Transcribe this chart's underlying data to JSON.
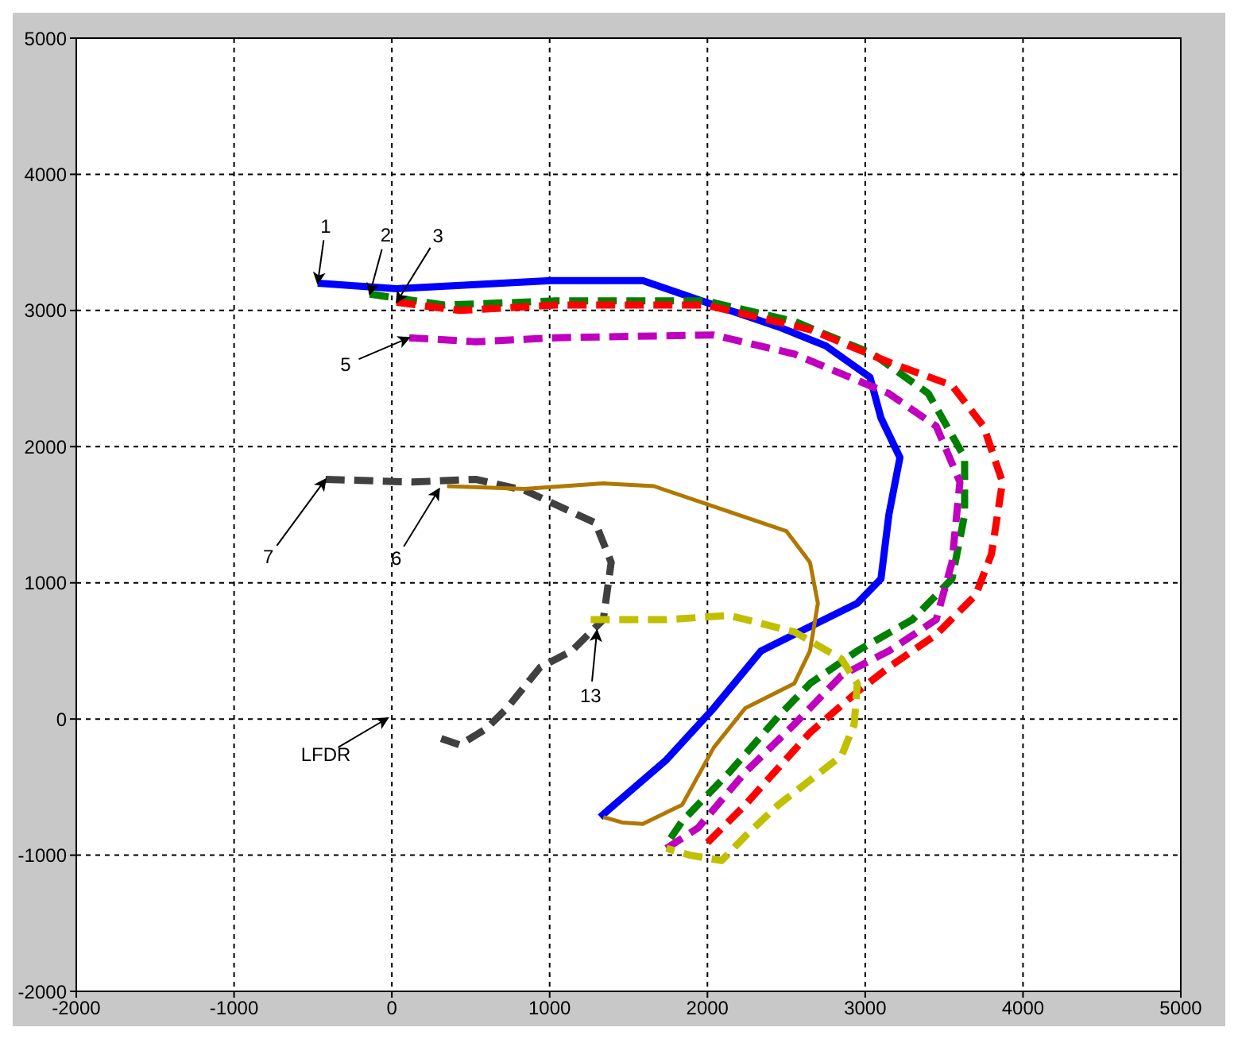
{
  "chart_data": {
    "type": "line",
    "xlim": [
      -2000,
      5000
    ],
    "ylim": [
      -2000,
      5000
    ],
    "xticks": [
      -2000,
      -1000,
      0,
      1000,
      2000,
      3000,
      4000,
      5000
    ],
    "yticks": [
      -2000,
      -1000,
      0,
      1000,
      2000,
      3000,
      4000,
      5000
    ],
    "grid": true,
    "marker": "none",
    "series": [
      {
        "color": "#0000ff",
        "line_style": "solid",
        "x": [
          -470,
          30,
          530,
          1010,
          1590,
          1990,
          2450,
          2750,
          3030,
          3100,
          3220,
          3150,
          3100,
          2950,
          2600,
          2340,
          2040,
          1740,
          1320
        ],
        "values": [
          3200,
          3160,
          3190,
          3220,
          3220,
          3060,
          2880,
          2740,
          2510,
          2210,
          1920,
          1500,
          1030,
          850,
          650,
          500,
          80,
          -300,
          -720
        ]
      },
      {
        "color": "#008000",
        "line_style": "dashed",
        "x": [
          -140,
          330,
          1040,
          1990,
          2550,
          3050,
          3400,
          3630,
          3630,
          3550,
          3300,
          2950,
          2650,
          2450,
          2140,
          1840,
          1740
        ],
        "values": [
          3120,
          3040,
          3070,
          3070,
          2920,
          2680,
          2390,
          1920,
          1500,
          1030,
          730,
          500,
          260,
          20,
          -390,
          -750,
          -920
        ]
      },
      {
        "color": "#ff0000",
        "line_style": "dashed",
        "x": [
          30,
          430,
          1040,
          1990,
          2650,
          3150,
          3550,
          3750,
          3870,
          3800,
          3700,
          3450,
          3150,
          2950,
          2650,
          2240,
          1990
        ],
        "values": [
          3060,
          3000,
          3040,
          3040,
          2860,
          2620,
          2450,
          2150,
          1740,
          1210,
          910,
          620,
          380,
          200,
          -100,
          -630,
          -920
        ]
      },
      {
        "color": "#bf00bf",
        "line_style": "dashed",
        "x": [
          110,
          530,
          1040,
          2040,
          2550,
          3150,
          3450,
          3600,
          3550,
          3450,
          3150,
          2850,
          2550,
          2240,
          1940,
          1740
        ],
        "values": [
          2800,
          2770,
          2800,
          2820,
          2680,
          2390,
          2150,
          1740,
          1150,
          730,
          500,
          320,
          -40,
          -390,
          -800,
          -950
        ]
      },
      {
        "color": "#404040",
        "line_style": "dashed",
        "x": [
          -420,
          130,
          530,
          840,
          1290,
          1390,
          1340,
          1140,
          940,
          730,
          600,
          430,
          280
        ],
        "values": [
          1760,
          1740,
          1760,
          1680,
          1440,
          1150,
          730,
          500,
          380,
          80,
          -70,
          -190,
          -130
        ]
      },
      {
        "color": "#b07800",
        "line_style": "solid",
        "x": [
          350,
          840,
          1340,
          1660,
          2040,
          2500,
          2650,
          2700,
          2650,
          2550,
          2240,
          2040,
          1840,
          1590,
          1460,
          1340
        ],
        "values": [
          1710,
          1690,
          1730,
          1710,
          1560,
          1380,
          1150,
          850,
          500,
          260,
          80,
          -210,
          -630,
          -770,
          -760,
          -720
        ]
      },
      {
        "color": "#c0c000",
        "line_style": "dashed",
        "x": [
          1260,
          1740,
          2140,
          2550,
          2850,
          2950,
          2930,
          2850,
          2650,
          2450,
          2240,
          2090,
          1890,
          1740
        ],
        "values": [
          730,
          730,
          760,
          640,
          440,
          260,
          -40,
          -270,
          -450,
          -630,
          -860,
          -1040,
          -1000,
          -950
        ]
      }
    ],
    "annotations": [
      {
        "text": "1",
        "x": -470,
        "y": 3200
      },
      {
        "text": "2",
        "x": -140,
        "y": 3120
      },
      {
        "text": "3",
        "x": 30,
        "y": 3060
      },
      {
        "text": "5",
        "x": 110,
        "y": 2800
      },
      {
        "text": "7",
        "x": -420,
        "y": 1760
      },
      {
        "text": "6",
        "x": 300,
        "y": 1690
      },
      {
        "text": "13",
        "x": 1300,
        "y": 650
      },
      "LFDR"
    ]
  }
}
